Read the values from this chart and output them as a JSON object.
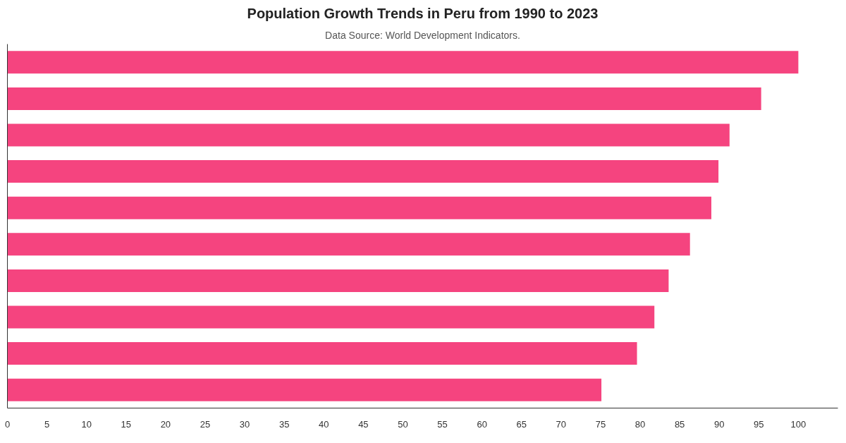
{
  "chart_data": {
    "type": "bar",
    "orientation": "horizontal",
    "title": "Population Growth Trends in Peru from 1990 to 2023",
    "subtitle": "Data Source: World Development Indicators.",
    "categories": [
      null,
      null,
      null,
      null,
      null,
      null,
      null,
      null,
      null,
      null
    ],
    "values": [
      100,
      95.3,
      91.3,
      89.9,
      89.0,
      86.3,
      83.6,
      81.8,
      79.6,
      75.1
    ],
    "color": "#f5447f",
    "xlim": [
      0,
      105
    ],
    "xticks": [
      0,
      5,
      10,
      15,
      20,
      25,
      30,
      35,
      40,
      45,
      50,
      55,
      60,
      65,
      70,
      75,
      80,
      85,
      90,
      95,
      100
    ],
    "tick_labels": "x",
    "grid": false
  }
}
